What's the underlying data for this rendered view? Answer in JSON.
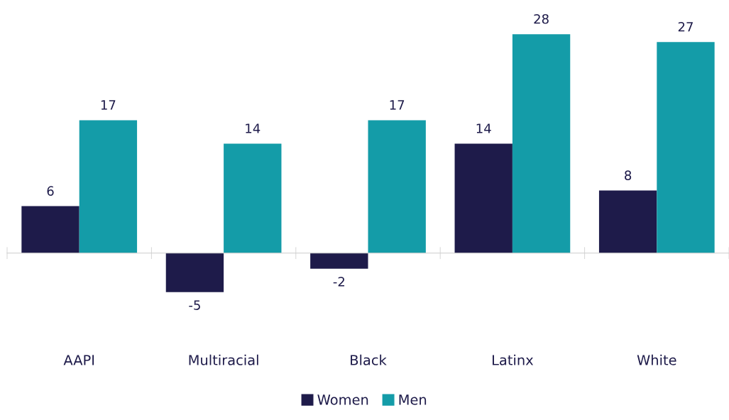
{
  "chart_data": {
    "type": "bar",
    "categories": [
      "AAPI",
      "Multiracial",
      "Black",
      "Latinx",
      "White"
    ],
    "series": [
      {
        "name": "Women",
        "color": "#1e1b4a",
        "values": [
          6,
          -5,
          -2,
          14,
          8
        ]
      },
      {
        "name": "Men",
        "color": "#149ca8",
        "values": [
          17,
          14,
          17,
          28,
          27
        ]
      }
    ],
    "data_labels": true,
    "legend": "bottom",
    "grid": false,
    "tick_labels": "x"
  }
}
